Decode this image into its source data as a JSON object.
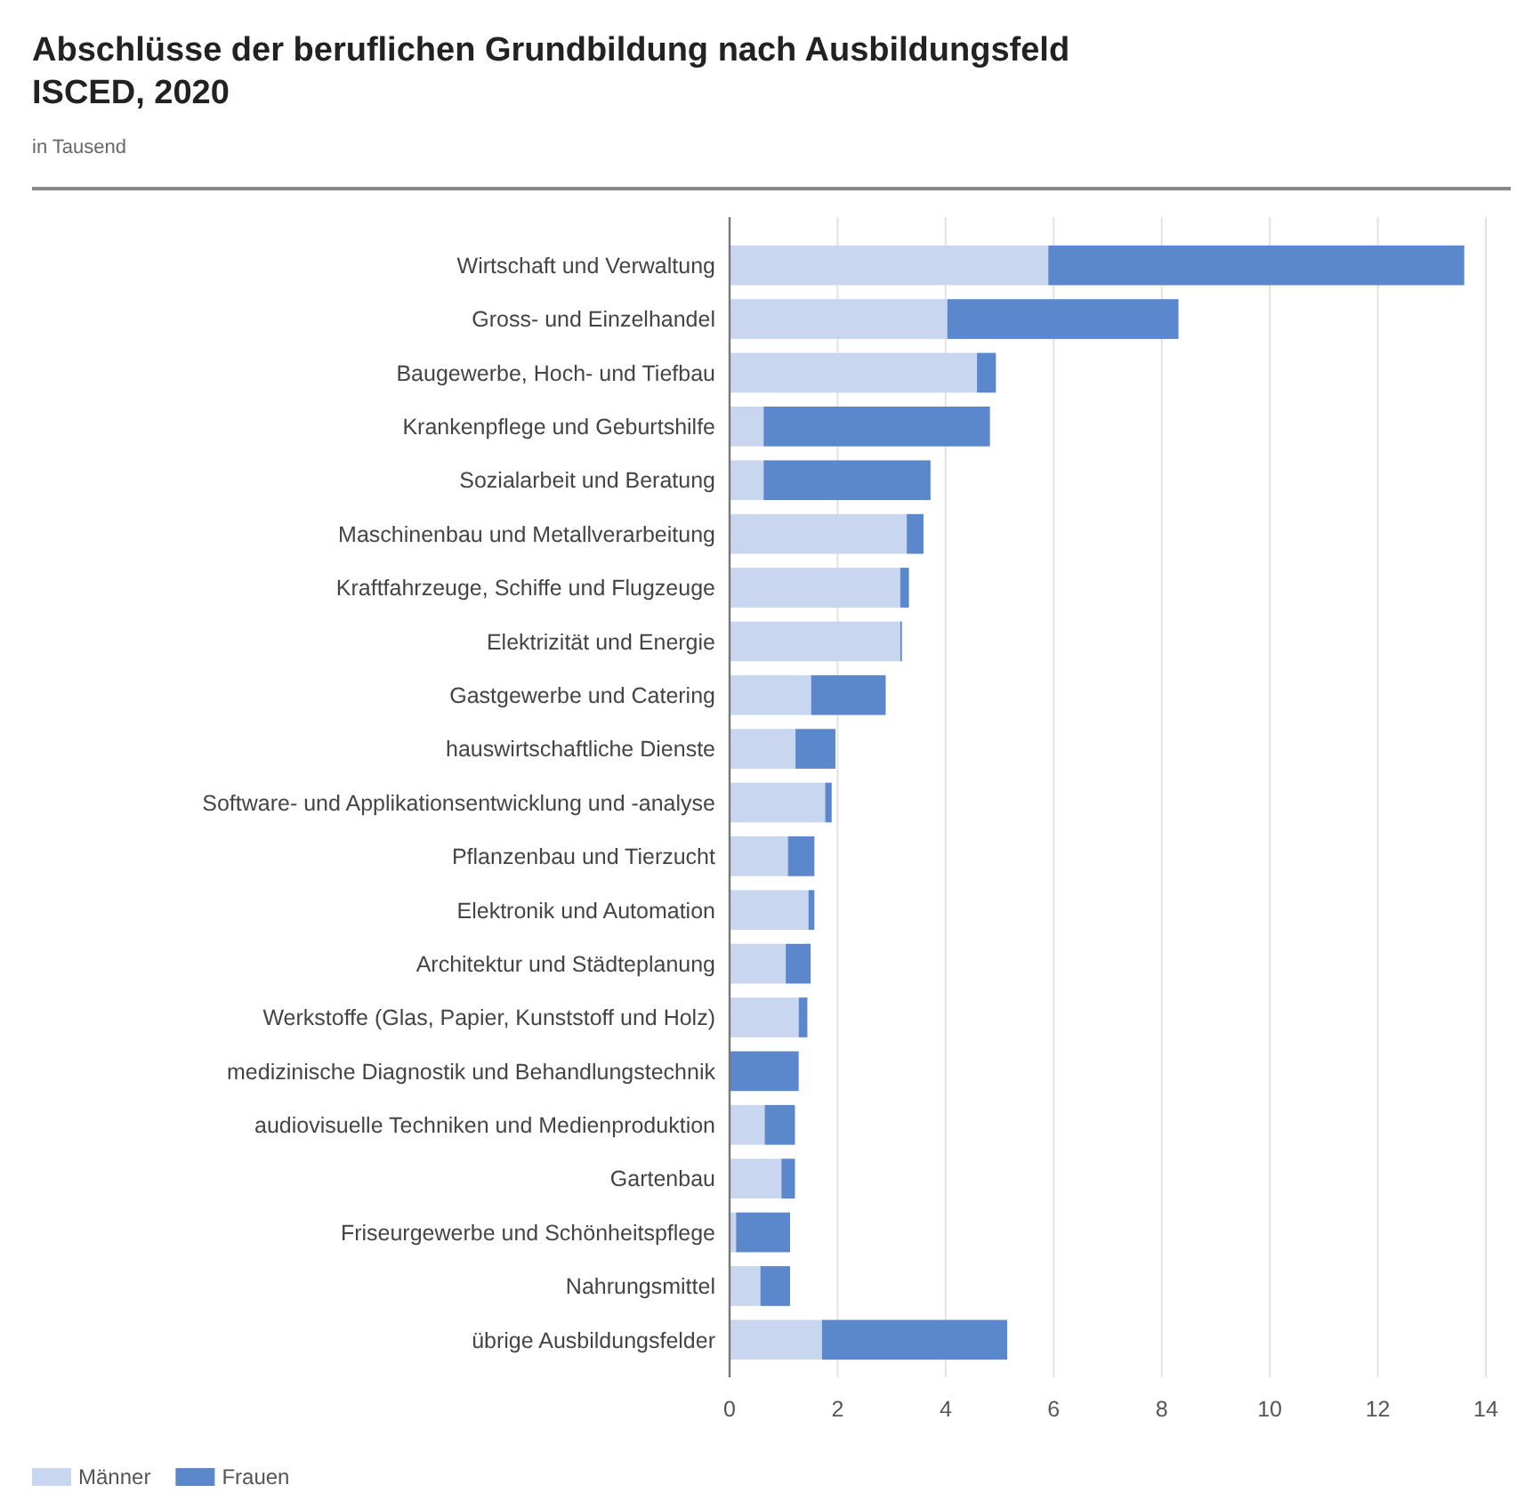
{
  "chart_data": {
    "type": "bar",
    "orientation": "horizontal",
    "stacked": true,
    "title": "Abschlüsse der beruflichen Grundbildung nach Ausbildungsfeld ISCED, 2020",
    "subtitle": "in Tausend",
    "categories": [
      "Wirtschaft und Verwaltung",
      "Gross- und Einzelhandel",
      "Baugewerbe, Hoch- und Tiefbau",
      "Krankenpflege und Geburtshilfe",
      "Sozialarbeit und Beratung",
      "Maschinenbau und Metallverarbeitung",
      "Kraftfahrzeuge, Schiffe und Flugzeuge",
      "Elektrizität und Energie",
      "Gastgewerbe und Catering",
      "hauswirtschaftliche Dienste",
      "Software- und Applikationsentwicklung und -analyse",
      "Pflanzenbau und Tierzucht",
      "Elektronik und Automation",
      "Architektur und Städteplanung",
      "Werkstoffe (Glas, Papier, Kunststoff und Holz)",
      "medizinische Diagnostik und Behandlungstechnik",
      "audiovisuelle Techniken und Medienproduktion",
      "Gartenbau",
      "Friseurgewerbe und Schönheitspflege",
      "Nahrungsmittel",
      "übrige Ausbildungsfelder"
    ],
    "series": [
      {
        "name": "Männer",
        "color": "#c9d6f0",
        "values": [
          5.9,
          4.03,
          4.58,
          0.63,
          0.63,
          3.28,
          3.16,
          3.16,
          1.51,
          1.22,
          1.77,
          1.08,
          1.46,
          1.04,
          1.28,
          null,
          0.65,
          0.96,
          0.12,
          0.57,
          1.71
        ]
      },
      {
        "name": "Frauen",
        "color": "#5b87cc",
        "values": [
          7.7,
          4.28,
          0.35,
          4.19,
          3.09,
          0.31,
          0.16,
          0.03,
          1.38,
          0.74,
          0.12,
          0.49,
          0.11,
          0.46,
          0.16,
          1.28,
          0.56,
          0.25,
          1.0,
          0.55,
          3.43
        ]
      }
    ],
    "xlim": [
      0,
      14
    ],
    "xticks": [
      0,
      2,
      4,
      6,
      8,
      10,
      12,
      14
    ],
    "grid": "x",
    "legend": "bottom"
  }
}
